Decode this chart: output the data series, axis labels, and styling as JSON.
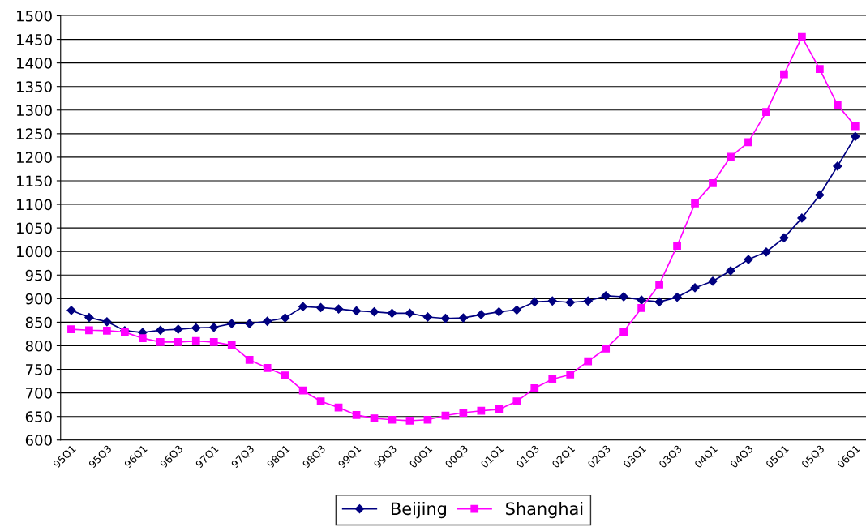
{
  "chart_data": {
    "type": "line",
    "categories": [
      "95Q1",
      null,
      "95Q3",
      null,
      "96Q1",
      null,
      "96Q3",
      null,
      "97Q1",
      null,
      "97Q3",
      null,
      "98Q1",
      null,
      "98Q3",
      null,
      "99Q1",
      null,
      "99Q3",
      null,
      "00Q1",
      null,
      "00Q3",
      null,
      "01Q1",
      null,
      "01Q3",
      null,
      "02Q1",
      null,
      "02Q3",
      null,
      "03Q1",
      null,
      "03Q3",
      null,
      "04Q1",
      null,
      "04Q3",
      null,
      "05Q1",
      null,
      "05Q3",
      null,
      "06Q1"
    ],
    "series": [
      {
        "name": "Beijing",
        "color": "#000080",
        "marker": "diamond",
        "values": [
          875,
          860,
          851,
          832,
          828,
          833,
          835,
          838,
          839,
          847,
          847,
          852,
          859,
          883,
          881,
          878,
          874,
          872,
          869,
          869,
          861,
          858,
          859,
          866,
          872,
          876,
          893,
          895,
          892,
          895,
          906,
          904,
          897,
          893,
          903,
          923,
          937,
          959,
          983,
          999,
          1029,
          1071,
          1120,
          1181,
          1244
        ]
      },
      {
        "name": "Shanghai",
        "color": "#ff00ff",
        "marker": "square",
        "values": [
          835,
          833,
          832,
          829,
          816,
          808,
          808,
          810,
          808,
          801,
          770,
          753,
          737,
          705,
          682,
          669,
          653,
          646,
          643,
          641,
          643,
          652,
          658,
          662,
          665,
          682,
          710,
          729,
          739,
          767,
          794,
          830,
          880,
          930,
          1012,
          1102,
          1145,
          1201,
          1232,
          1296,
          1376,
          1455,
          1387,
          1311,
          1266
        ]
      }
    ],
    "ylim": [
      600,
      1500
    ],
    "yticks": [
      600,
      650,
      700,
      750,
      800,
      850,
      900,
      950,
      1000,
      1050,
      1100,
      1150,
      1200,
      1250,
      1300,
      1350,
      1400,
      1450,
      1500
    ],
    "grid": "y",
    "legend": "bottom"
  }
}
